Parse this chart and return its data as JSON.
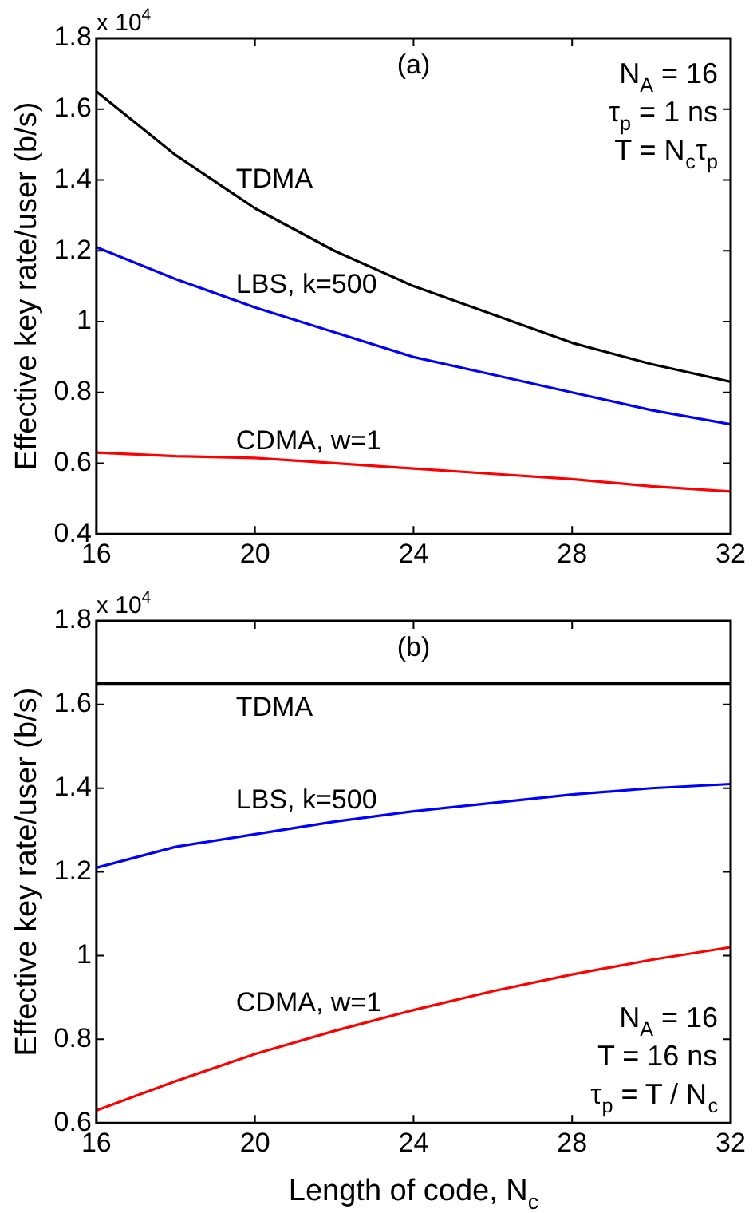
{
  "chart_data": [
    {
      "type": "line",
      "ylabel": "Effective key rate/user (b/s)",
      "x": [
        16,
        18,
        20,
        22,
        24,
        26,
        28,
        30,
        32
      ],
      "xlim": [
        16,
        32
      ],
      "xticks": [
        16,
        20,
        24,
        28,
        32
      ],
      "ylim": [
        0.4,
        1.8
      ],
      "yticks": [
        0.4,
        0.6,
        0.8,
        1,
        1.2,
        1.4,
        1.6,
        1.8
      ],
      "series": [
        {
          "name": "TDMA",
          "color": "#000000",
          "values": [
            1.65,
            1.47,
            1.32,
            1.2,
            1.1,
            1.02,
            0.94,
            0.88,
            0.83
          ]
        },
        {
          "name": "LBS, k=500",
          "color": "#0000ff",
          "values": [
            1.21,
            1.12,
            1.04,
            0.97,
            0.9,
            0.85,
            0.8,
            0.75,
            0.71
          ]
        },
        {
          "name": "CDMA, w=1",
          "color": "#ff0000",
          "values": [
            0.63,
            0.62,
            0.615,
            0.6,
            0.585,
            0.57,
            0.555,
            0.535,
            0.52
          ]
        }
      ],
      "annotations": [
        "x 10$^{4}$",
        "(a)",
        "N$_{A}$ = 16",
        "τ$_{p}$ = 1 ns",
        "T = N$_{c}$τ$_{p}$"
      ],
      "grid": false,
      "legend": false,
      "marker": "none",
      "line_style": "solid"
    },
    {
      "type": "line",
      "xlabel": "Length of code, N$_{c}$",
      "ylabel": "Effective key rate/user (b/s)",
      "x": [
        16,
        18,
        20,
        22,
        24,
        26,
        28,
        30,
        32
      ],
      "xlim": [
        16,
        32
      ],
      "xticks": [
        16,
        20,
        24,
        28,
        32
      ],
      "ylim": [
        0.6,
        1.8
      ],
      "yticks": [
        0.6,
        0.8,
        1,
        1.2,
        1.4,
        1.6,
        1.8
      ],
      "series": [
        {
          "name": "TDMA",
          "color": "#000000",
          "values": [
            1.65,
            1.65,
            1.65,
            1.65,
            1.65,
            1.65,
            1.65,
            1.65,
            1.65
          ]
        },
        {
          "name": "LBS, k=500",
          "color": "#0000ff",
          "values": [
            1.21,
            1.26,
            1.29,
            1.32,
            1.345,
            1.365,
            1.385,
            1.4,
            1.41
          ]
        },
        {
          "name": "CDMA, w=1",
          "color": "#ff0000",
          "values": [
            0.63,
            0.7,
            0.765,
            0.82,
            0.87,
            0.915,
            0.955,
            0.99,
            1.02
          ]
        }
      ],
      "annotations": [
        "x 10$^{4}$",
        "(b)",
        "N$_{A}$ = 16",
        "T = 16 ns",
        "τ$_{p}$ = T / N$_{c}$"
      ],
      "grid": false,
      "legend": false,
      "marker": "none",
      "line_style": "solid"
    }
  ]
}
